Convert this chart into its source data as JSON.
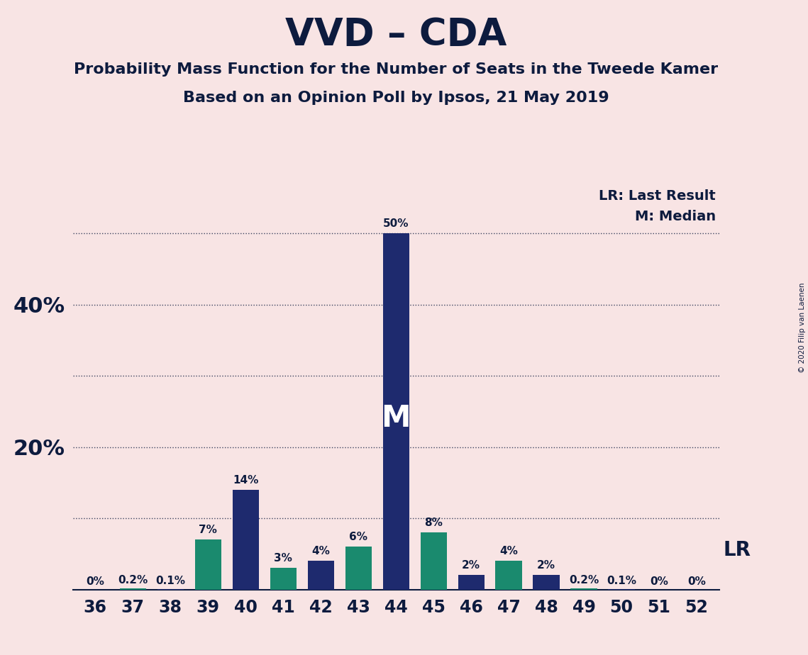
{
  "title": "VVD – CDA",
  "subtitle1": "Probability Mass Function for the Number of Seats in the Tweede Kamer",
  "subtitle2": "Based on an Opinion Poll by Ipsos, 21 May 2019",
  "copyright": "© 2020 Filip van Laenen",
  "seats": [
    36,
    37,
    38,
    39,
    40,
    41,
    42,
    43,
    44,
    45,
    46,
    47,
    48,
    49,
    50,
    51,
    52
  ],
  "values": [
    0.0,
    0.2,
    0.1,
    7.0,
    14.0,
    3.0,
    4.0,
    6.0,
    50.0,
    8.0,
    2.0,
    4.0,
    2.0,
    0.2,
    0.1,
    0.0,
    0.0
  ],
  "bar_colors": [
    "#1a8a6e",
    "#1a8a6e",
    "#1e2a6e",
    "#1a8a6e",
    "#1e2a6e",
    "#1a8a6e",
    "#1e2a6e",
    "#1a8a6e",
    "#1e2a6e",
    "#1a8a6e",
    "#1e2a6e",
    "#1a8a6e",
    "#1e2a6e",
    "#1a8a6e",
    "#1e2a6e",
    "#1a8a6e",
    "#1e2a6e"
  ],
  "bar_color_navy": "#1e2a6e",
  "bar_color_teal": "#1a8a6e",
  "bg_color": "#f8e4e4",
  "text_color": "#0d1b3e",
  "median_seat": 44,
  "lr_seat": 48,
  "median_label": "M",
  "lr_label": "LR",
  "legend_lr": "LR: Last Result",
  "legend_m": "M: Median",
  "ytick_positions": [
    20,
    40
  ],
  "ytick_labels": [
    "20%",
    "40%"
  ],
  "dotted_line_positions": [
    10,
    20,
    30,
    40,
    50
  ],
  "ylim": [
    0,
    57
  ],
  "bar_width": 0.7
}
